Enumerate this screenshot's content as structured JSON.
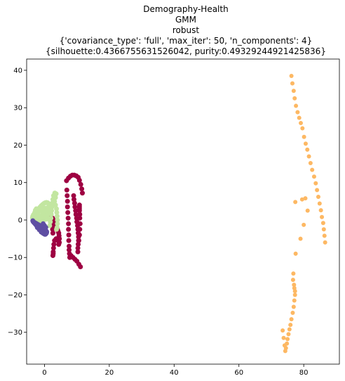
{
  "chart_data": {
    "type": "scatter",
    "title_lines": [
      "Demography-Health",
      "GMM",
      "robust",
      "{'covariance_type': 'full', 'max_iter': 50, 'n_components': 4}",
      "{silhouette:0.4366755631526042, purity:0.49329244921425836}"
    ],
    "xlabel": "",
    "ylabel": "",
    "xlim": [
      -5.5,
      91
    ],
    "ylim": [
      -38.5,
      43
    ],
    "xticks": [
      0,
      20,
      40,
      60,
      80
    ],
    "yticks": [
      -30,
      -20,
      -10,
      0,
      10,
      20,
      30,
      40
    ],
    "grid": false,
    "legend": "none",
    "series": [
      {
        "color": "#fdb863",
        "marker_size": 6,
        "x": [
          76.2,
          76.5,
          76.9,
          77.2,
          77.6,
          78.1,
          78.6,
          79.1,
          79.6,
          80.1,
          80.6,
          81.1,
          81.6,
          82.1,
          82.6,
          83.2,
          83.7,
          84.1,
          84.5,
          84.9,
          85.3,
          85.6,
          86.0,
          86.2,
          86.4,
          86.6,
          77.4,
          79.5,
          80.5,
          81.2,
          80.0,
          79.0,
          77.5,
          76.8,
          76.7,
          77.0,
          77.1,
          77.3,
          77.3,
          77.1,
          76.9,
          76.6,
          76.2,
          75.9,
          75.6,
          75.3,
          75.0,
          74.8,
          74.5,
          74.3,
          74.1,
          73.8,
          73.5
        ],
        "y": [
          38.5,
          36.5,
          34.5,
          32.5,
          30.5,
          28.8,
          27.3,
          25.9,
          24.5,
          22.2,
          20.4,
          18.8,
          17.0,
          15.2,
          13.4,
          11.6,
          9.8,
          8.0,
          6.2,
          4.4,
          2.6,
          0.8,
          -0.8,
          -2.5,
          -4.2,
          -6.0,
          4.8,
          5.5,
          5.8,
          2.5,
          -1.3,
          -5.0,
          -9.0,
          -14.3,
          -16.0,
          -17.3,
          -18.2,
          -19.0,
          -20.0,
          -21.5,
          -23.2,
          -24.8,
          -26.5,
          -28.0,
          -29.2,
          -30.5,
          -31.8,
          -33.0,
          -34.2,
          -35.0,
          -33.5,
          -31.5,
          -29.5
        ]
      },
      {
        "color": "#9e0142",
        "marker_size": 7,
        "x": [
          6.8,
          7.4,
          8.0,
          8.6,
          9.2,
          9.8,
          10.4,
          10.8,
          11.2,
          11.5,
          11.7,
          6.9,
          7.0,
          7.1,
          7.1,
          7.2,
          7.3,
          7.4,
          7.4,
          7.5,
          7.5,
          7.6,
          7.6,
          7.7,
          7.8,
          9.0,
          9.1,
          9.3,
          9.4,
          9.6,
          9.7,
          9.9,
          10.0,
          10.2,
          10.3,
          10.4,
          10.5,
          10.5,
          10.4,
          10.3,
          10.3,
          10.6,
          10.8,
          10.9,
          11.0,
          10.9,
          10.9,
          10.8,
          10.8,
          10.8,
          10.8,
          8.2,
          8.8,
          9.4,
          10.0,
          10.6,
          11.1,
          2.5,
          2.8,
          3.0,
          3.3,
          3.5,
          3.8,
          4.0,
          4.2,
          4.4,
          4.5,
          4.6,
          4.6,
          4.4,
          4.1,
          3.6,
          3.1,
          2.9,
          2.8,
          2.7,
          2.7,
          2.6,
          2.6,
          2.5,
          2.4,
          2.3,
          2.1,
          1.9,
          1.7,
          1.6,
          1.5,
          1.4
        ],
        "y": [
          10.5,
          11.2,
          11.7,
          12.0,
          12.0,
          11.8,
          11.4,
          10.6,
          9.5,
          8.3,
          7.2,
          8.0,
          6.5,
          5.0,
          3.5,
          2.0,
          0.5,
          -1.0,
          -2.5,
          -4.0,
          -5.5,
          -7.0,
          -8.0,
          -9.0,
          -10.0,
          6.5,
          5.5,
          4.5,
          3.5,
          2.5,
          1.5,
          0.5,
          -0.5,
          -1.5,
          -2.5,
          -3.5,
          -4.5,
          -5.5,
          -6.5,
          -7.5,
          -8.5,
          -5.5,
          -4.0,
          -2.5,
          -1.0,
          0.5,
          1.5,
          2.5,
          3.0,
          3.5,
          4.0,
          -9.5,
          -10.0,
          -10.5,
          -11.0,
          -11.8,
          -12.5,
          0.5,
          0.0,
          -0.5,
          -1.0,
          -1.5,
          -2.0,
          -2.5,
          -3.0,
          -3.5,
          -4.2,
          -5.0,
          -6.0,
          -6.5,
          -5.5,
          -5.0,
          -5.5,
          -6.5,
          -7.5,
          -8.5,
          -9.0,
          -9.5,
          -3.5,
          -2.5,
          -1.5,
          -0.5,
          0.5,
          1.5,
          2.5,
          2.0,
          1.0,
          0.5
        ]
      },
      {
        "color": "#c2e6a0",
        "marker_size": 7,
        "x": [
          2.8,
          3.2,
          3.6,
          3.4,
          3.1,
          3.4,
          3.7,
          3.8,
          3.9,
          4.0,
          4.0,
          3.9,
          3.7,
          2.6,
          2.4,
          2.3,
          2.2,
          2.1,
          2.0,
          1.8,
          1.6,
          1.4,
          1.2,
          1.0,
          0.6,
          0.2,
          -0.2,
          -0.6,
          -1.0,
          -1.4,
          -1.8,
          -2.2,
          -2.6,
          -3.0,
          -3.4,
          -3.6,
          -3.7,
          -3.5,
          -3.2,
          -2.8,
          -2.4,
          -2.0,
          -1.6,
          -1.2,
          -0.8,
          -0.4,
          0.0,
          0.4,
          0.8,
          1.2,
          -2.5,
          -1.5,
          -0.5,
          0.5,
          1.5,
          -3.0,
          -2.0,
          -1.0,
          0.0,
          1.0,
          -2.5,
          -1.5,
          -0.5,
          0.5,
          -3.2,
          -2.2,
          -1.2,
          -0.2,
          0.8,
          -2.8,
          -1.8,
          -0.8,
          0.2,
          1.2
        ],
        "y": [
          6.5,
          7.2,
          7.0,
          6.0,
          5.0,
          4.0,
          3.0,
          2.0,
          1.0,
          0.0,
          -1.0,
          -2.0,
          -2.5,
          5.5,
          4.5,
          3.5,
          2.5,
          1.5,
          0.5,
          -0.5,
          -1.5,
          4.0,
          4.4,
          4.6,
          4.7,
          4.6,
          4.4,
          4.1,
          3.8,
          3.4,
          3.0,
          2.6,
          2.2,
          1.8,
          1.4,
          1.0,
          0.6,
          0.2,
          -0.1,
          -0.3,
          -0.4,
          -0.4,
          -0.3,
          -0.2,
          -0.1,
          0.0,
          0.1,
          0.2,
          0.3,
          0.4,
          3.0,
          3.2,
          3.4,
          3.2,
          3.0,
          2.0,
          2.2,
          2.4,
          2.2,
          2.0,
          1.0,
          1.2,
          1.4,
          1.2,
          0.5,
          0.7,
          0.9,
          1.1,
          1.3,
          2.6,
          2.8,
          3.0,
          2.8,
          2.6
        ]
      },
      {
        "color": "#5e4fa2",
        "marker_size": 7,
        "x": [
          -3.6,
          -3.5,
          -3.3,
          -3.1,
          -2.9,
          -2.7,
          -2.5,
          -2.3,
          -2.1,
          -1.9,
          -1.7,
          -1.5,
          -1.3,
          -1.1,
          -0.9,
          -0.7,
          -0.5,
          -0.3,
          -0.1,
          0.1,
          0.3,
          0.5,
          0.7,
          -3.4,
          -3.0,
          -2.6,
          -2.2,
          -1.8,
          -1.4,
          -1.0,
          -0.6,
          -0.2,
          0.2,
          -2.8,
          -2.4,
          -2.0,
          -1.6,
          -1.2,
          -0.8,
          -0.4,
          0.0,
          -2.2,
          -1.8,
          -1.4,
          -1.0,
          -0.6,
          -0.2,
          0.2,
          0.6,
          -1.6,
          -1.2,
          -0.8,
          -0.4,
          0.0,
          0.4,
          -1.0,
          -0.6,
          -0.2,
          0.2,
          0.6,
          -0.4,
          0.0,
          0.4
        ],
        "y": [
          -0.2,
          -0.4,
          -0.6,
          -0.8,
          -1.0,
          -1.2,
          -1.4,
          -1.6,
          -1.8,
          -2.0,
          -2.2,
          -2.4,
          -2.6,
          -2.8,
          -3.0,
          -3.2,
          -3.4,
          -3.6,
          -3.7,
          -3.8,
          -3.8,
          -3.6,
          -3.2,
          -0.5,
          -0.7,
          -0.9,
          -1.1,
          -1.3,
          -1.5,
          -1.7,
          -1.9,
          -2.1,
          -2.3,
          -1.0,
          -1.2,
          -1.4,
          -1.6,
          -1.8,
          -2.0,
          -2.2,
          -2.4,
          -2.0,
          -2.2,
          -2.4,
          -2.6,
          -2.8,
          -3.0,
          -3.2,
          -3.0,
          -2.6,
          -2.8,
          -3.0,
          -3.2,
          -3.4,
          -3.3,
          -3.2,
          -3.4,
          -3.6,
          -3.7,
          -3.5,
          -1.0,
          -1.5,
          -2.0
        ]
      }
    ]
  }
}
